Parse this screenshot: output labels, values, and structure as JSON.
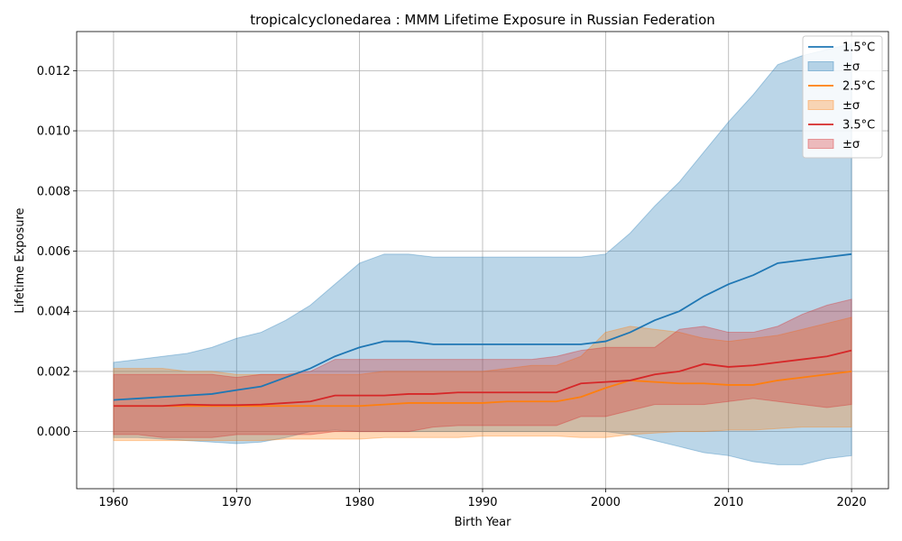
{
  "chart_data": {
    "type": "line",
    "title": "tropicalcyclonedarea : MMM Lifetime Exposure in Russian Federation",
    "xlabel": "Birth Year",
    "ylabel": "Lifetime Exposure",
    "xlim": [
      1957,
      2023
    ],
    "ylim": [
      -0.0019,
      0.0133
    ],
    "grid": true,
    "legend_position": "top-right",
    "x_ticks": [
      1960,
      1970,
      1980,
      1990,
      2000,
      2010,
      2020
    ],
    "y_ticks": [
      0.0,
      0.002,
      0.004,
      0.006,
      0.008,
      0.01,
      0.012
    ],
    "y_tick_labels": [
      "0.000",
      "0.002",
      "0.004",
      "0.006",
      "0.008",
      "0.010",
      "0.012"
    ],
    "x": [
      1960,
      1962,
      1964,
      1966,
      1968,
      1970,
      1972,
      1974,
      1976,
      1978,
      1980,
      1982,
      1984,
      1986,
      1988,
      1990,
      1992,
      1994,
      1996,
      1998,
      2000,
      2002,
      2004,
      2006,
      2008,
      2010,
      2012,
      2014,
      2016,
      2018,
      2020
    ],
    "legend_items": [
      {
        "label": "1.5°C",
        "kind": "line",
        "color": "#1f77b4"
      },
      {
        "label": "±σ",
        "kind": "band",
        "color": "#1f77b4"
      },
      {
        "label": "2.5°C",
        "kind": "line",
        "color": "#ff7f0e"
      },
      {
        "label": "±σ",
        "kind": "band",
        "color": "#ff7f0e"
      },
      {
        "label": "3.5°C",
        "kind": "line",
        "color": "#d62728"
      },
      {
        "label": "±σ",
        "kind": "band",
        "color": "#d62728"
      }
    ],
    "series": [
      {
        "name": "1.5°C",
        "color": "#1f77b4",
        "band_opacity": 0.3,
        "mean": [
          0.00105,
          0.0011,
          0.00115,
          0.0012,
          0.00125,
          0.00138,
          0.0015,
          0.0018,
          0.0021,
          0.0025,
          0.0028,
          0.003,
          0.003,
          0.0029,
          0.0029,
          0.0029,
          0.0029,
          0.0029,
          0.0029,
          0.0029,
          0.003,
          0.0033,
          0.0037,
          0.004,
          0.0045,
          0.0049,
          0.0052,
          0.0056,
          0.0057,
          0.0058,
          0.0059
        ],
        "upper": [
          0.0023,
          0.0024,
          0.0025,
          0.0026,
          0.0028,
          0.0031,
          0.0033,
          0.0037,
          0.0042,
          0.0049,
          0.0056,
          0.0059,
          0.0059,
          0.0058,
          0.0058,
          0.0058,
          0.0058,
          0.0058,
          0.0058,
          0.0058,
          0.0059,
          0.0066,
          0.0075,
          0.0083,
          0.0093,
          0.0103,
          0.0112,
          0.0122,
          0.0125,
          0.0127,
          0.0129
        ],
        "lower": [
          -0.0002,
          -0.0002,
          -0.00025,
          -0.0003,
          -0.00035,
          -0.0004,
          -0.00035,
          -0.0002,
          0.0,
          5e-05,
          0.0,
          0.0,
          0.0,
          0.0,
          0.0,
          0.0,
          0.0,
          0.0,
          0.0,
          0.0,
          0.0,
          -0.0001,
          -0.0003,
          -0.0005,
          -0.0007,
          -0.0008,
          -0.001,
          -0.0011,
          -0.0011,
          -0.0009,
          -0.0008
        ]
      },
      {
        "name": "2.5°C",
        "color": "#ff7f0e",
        "band_opacity": 0.3,
        "mean": [
          0.00085,
          0.00085,
          0.00085,
          0.00085,
          0.00085,
          0.00085,
          0.00085,
          0.00085,
          0.00085,
          0.00085,
          0.00085,
          0.0009,
          0.00095,
          0.00095,
          0.00095,
          0.00095,
          0.001,
          0.001,
          0.001,
          0.00115,
          0.00145,
          0.0017,
          0.00165,
          0.0016,
          0.0016,
          0.00155,
          0.00155,
          0.0017,
          0.0018,
          0.0019,
          0.002
        ],
        "upper": [
          0.0021,
          0.0021,
          0.0021,
          0.002,
          0.002,
          0.0019,
          0.0019,
          0.0019,
          0.0019,
          0.0019,
          0.0019,
          0.002,
          0.002,
          0.002,
          0.002,
          0.002,
          0.0021,
          0.0022,
          0.0022,
          0.0025,
          0.0033,
          0.0035,
          0.0034,
          0.0033,
          0.0031,
          0.003,
          0.0031,
          0.0032,
          0.0034,
          0.0036,
          0.0038
        ],
        "lower": [
          -0.0003,
          -0.0003,
          -0.0003,
          -0.0003,
          -0.0003,
          -0.0003,
          -0.0003,
          -0.00025,
          -0.00025,
          -0.00025,
          -0.00025,
          -0.0002,
          -0.0002,
          -0.0002,
          -0.0002,
          -0.00015,
          -0.00015,
          -0.00015,
          -0.00015,
          -0.0002,
          -0.0002,
          -0.0001,
          -5e-05,
          0.0,
          0.0,
          5e-05,
          5e-05,
          0.0001,
          0.00015,
          0.00015,
          0.00015
        ]
      },
      {
        "name": "3.5°C",
        "color": "#d62728",
        "band_opacity": 0.3,
        "mean": [
          0.00085,
          0.00085,
          0.00085,
          0.0009,
          0.00088,
          0.00088,
          0.0009,
          0.00095,
          0.001,
          0.0012,
          0.0012,
          0.0012,
          0.00125,
          0.00125,
          0.0013,
          0.0013,
          0.0013,
          0.0013,
          0.0013,
          0.0016,
          0.00165,
          0.0017,
          0.0019,
          0.002,
          0.00225,
          0.00215,
          0.0022,
          0.0023,
          0.0024,
          0.0025,
          0.0027
        ],
        "upper": [
          0.0019,
          0.0019,
          0.0019,
          0.0019,
          0.0019,
          0.0018,
          0.0019,
          0.0019,
          0.002,
          0.0024,
          0.0024,
          0.0024,
          0.0024,
          0.0024,
          0.0024,
          0.0024,
          0.0024,
          0.0024,
          0.0025,
          0.0027,
          0.0028,
          0.0028,
          0.0028,
          0.0034,
          0.0035,
          0.0033,
          0.0033,
          0.0035,
          0.0039,
          0.0042,
          0.0044
        ],
        "lower": [
          -0.0001,
          -0.0001,
          -0.0002,
          -0.0002,
          -0.0002,
          -0.0001,
          -0.0001,
          -0.0001,
          -0.0001,
          0.0,
          0.0,
          0.0,
          0.0,
          0.00015,
          0.0002,
          0.0002,
          0.0002,
          0.0002,
          0.0002,
          0.0005,
          0.0005,
          0.0007,
          0.0009,
          0.0009,
          0.0009,
          0.001,
          0.0011,
          0.001,
          0.0009,
          0.0008,
          0.0009
        ]
      }
    ]
  }
}
